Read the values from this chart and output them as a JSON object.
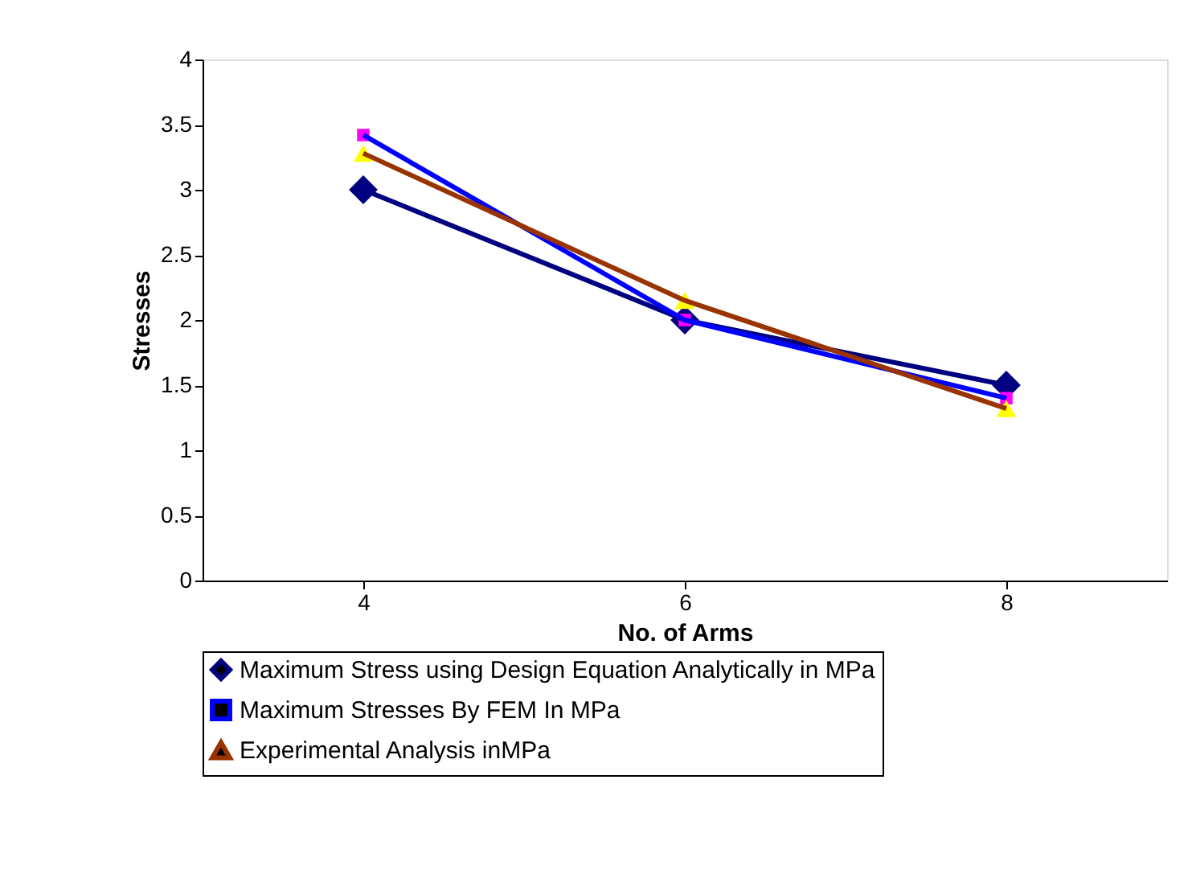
{
  "chart_data": {
    "type": "line",
    "xlabel": "No. of Arms",
    "ylabel": "Stresses",
    "categories": [
      "4",
      "6",
      "8"
    ],
    "series": [
      {
        "name": "Maximum Stress using Design Equation Analytically in MPa",
        "color": "#000080",
        "colors": [
          "#000080",
          "#000080",
          "#000080"
        ],
        "marker": "diamond",
        "values": [
          3.0,
          2.0,
          1.5
        ]
      },
      {
        "name": "Maximum Stresses By FEM In MPa",
        "color": "#0000ff",
        "colors": [
          "#ff00ff",
          "#ff00ff",
          "#ff00ff"
        ],
        "marker": "square",
        "values": [
          3.42,
          2.0,
          1.4
        ]
      },
      {
        "name": "Experimental Analysis inMPa",
        "color": "#993300",
        "colors": [
          "#ffff00",
          "#ffff00",
          "#ffff00"
        ],
        "marker": "triangle",
        "values": [
          3.28,
          2.15,
          1.32
        ]
      }
    ],
    "ylim": [
      0,
      4
    ],
    "yticks": [
      0,
      0.5,
      1,
      1.5,
      2,
      2.5,
      3,
      3.5,
      4
    ],
    "grid": false,
    "legend": "bottom",
    "line_style": "solid"
  }
}
